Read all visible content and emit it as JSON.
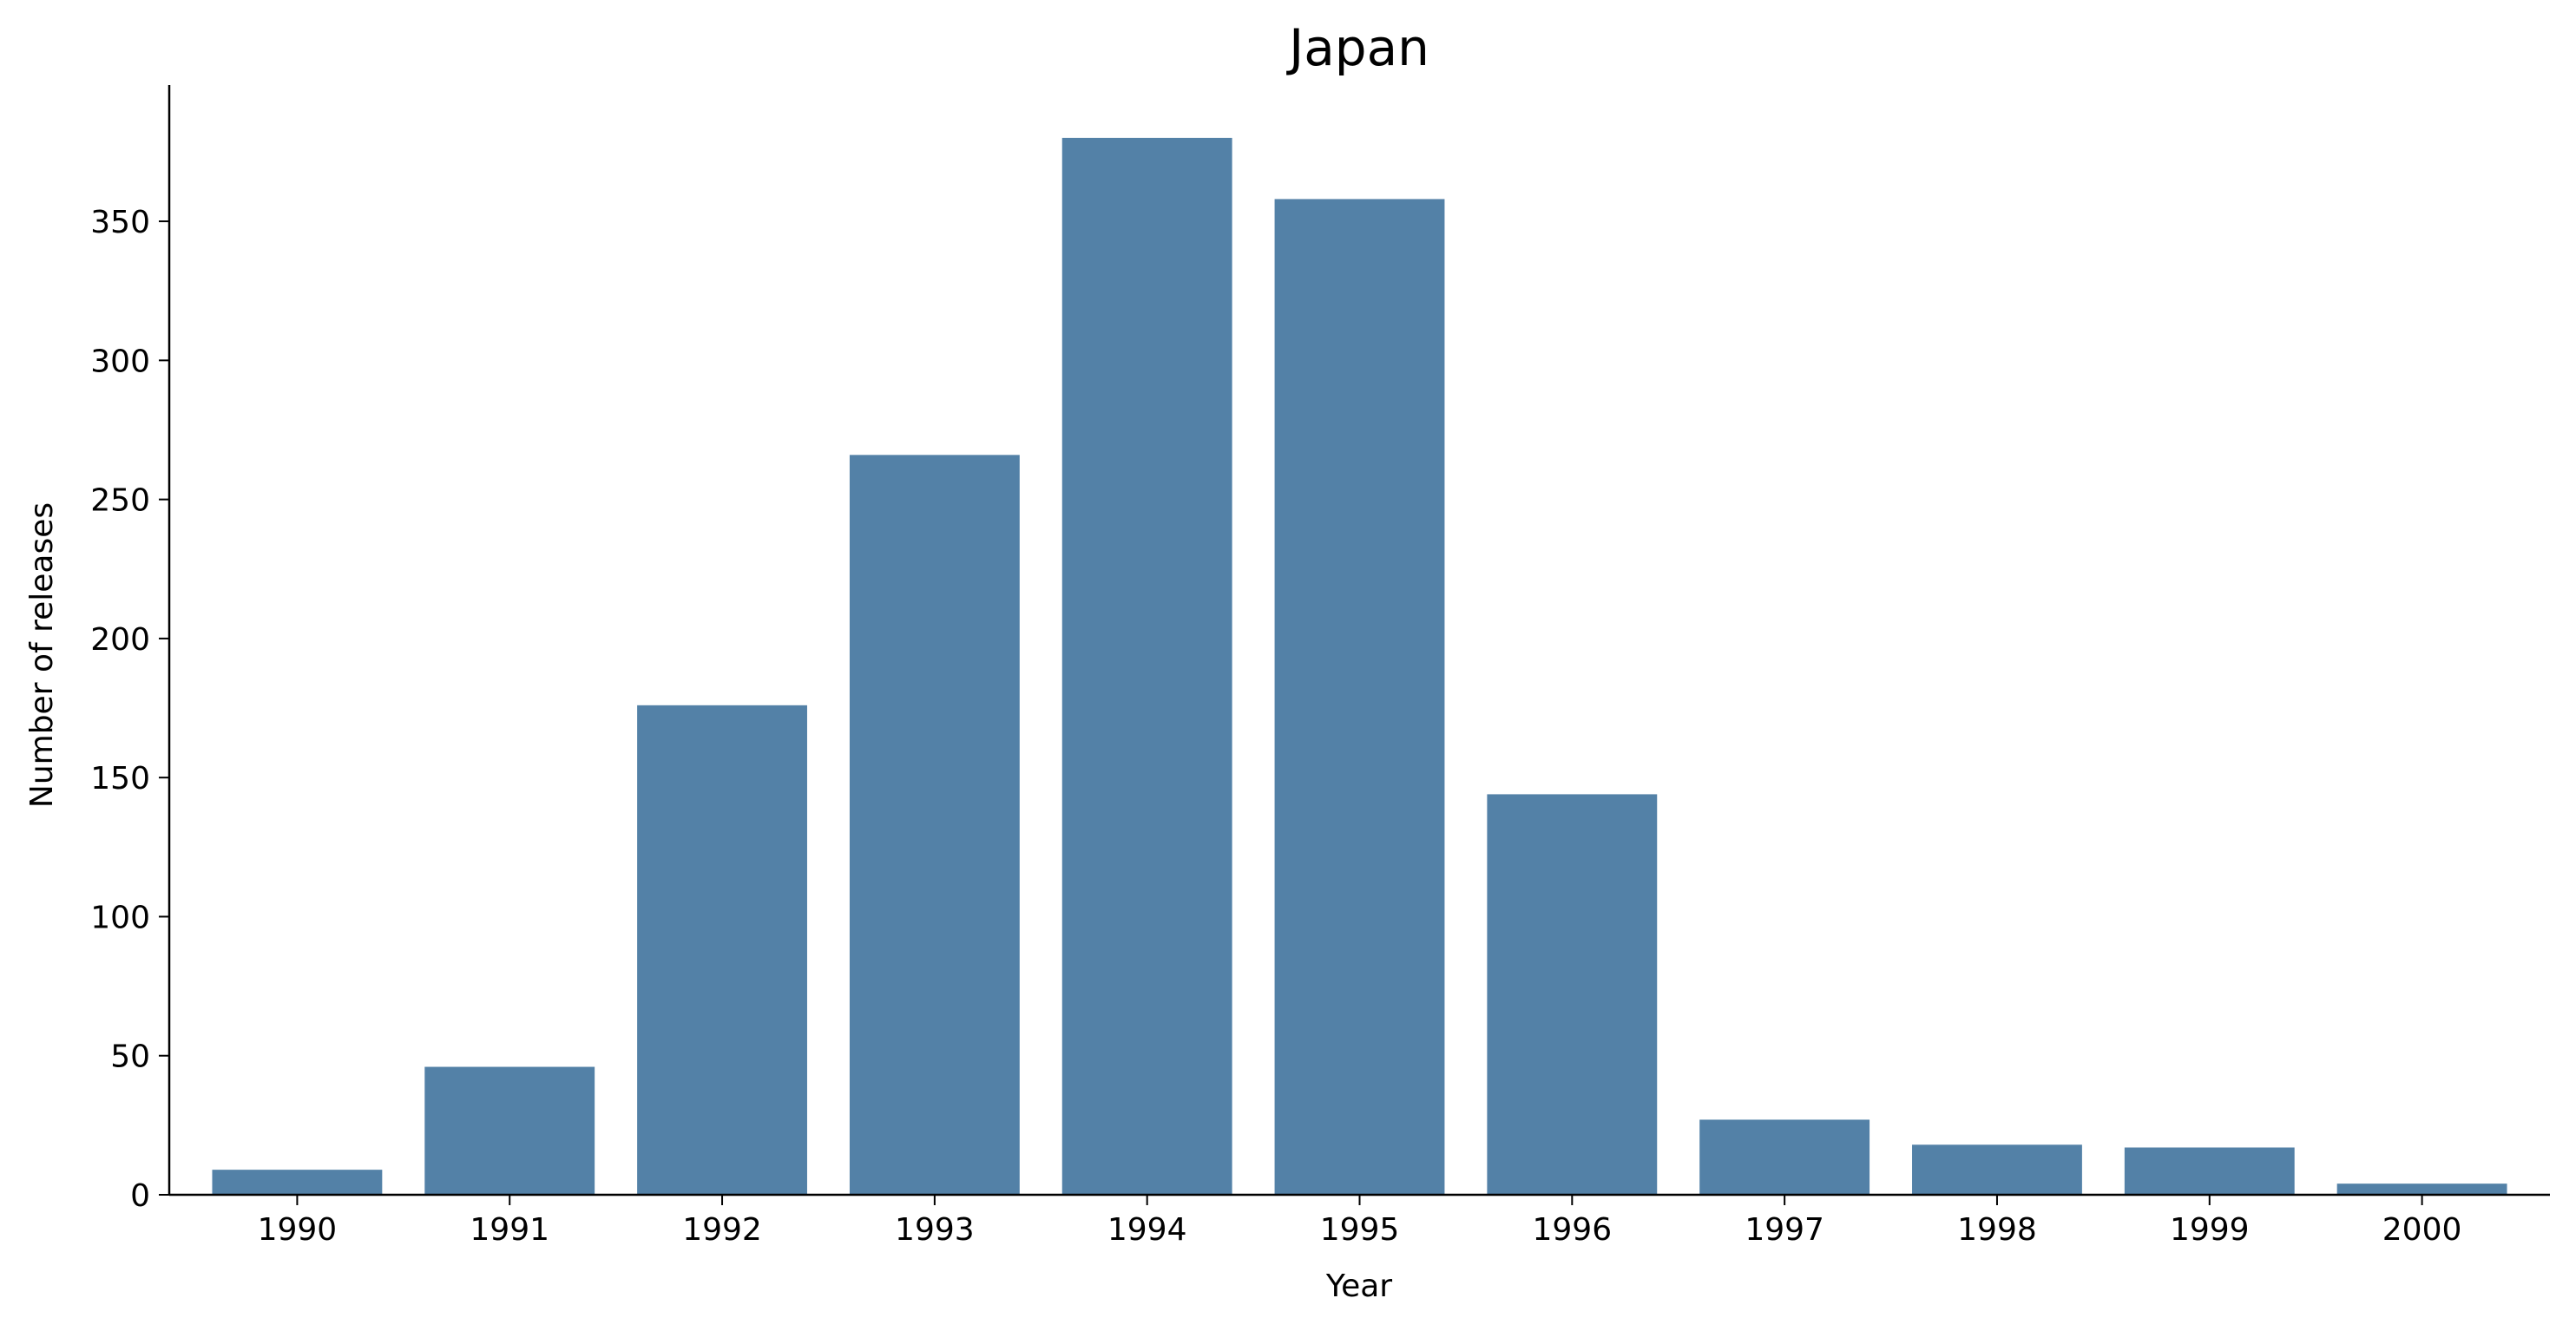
{
  "chart_data": {
    "type": "bar",
    "title": "Japan",
    "xlabel": "Year",
    "ylabel": "Number of releases",
    "categories": [
      "1990",
      "1991",
      "1992",
      "1993",
      "1994",
      "1995",
      "1996",
      "1997",
      "1998",
      "1999",
      "2000"
    ],
    "values": [
      9,
      46,
      176,
      266,
      380,
      358,
      144,
      27,
      18,
      17,
      4
    ],
    "ylim": [
      0,
      399
    ],
    "yticks": [
      0,
      50,
      100,
      150,
      200,
      250,
      300,
      350
    ],
    "grid": false,
    "legend": "none",
    "bar_color": "#5381a7",
    "axis_color": "#000000"
  }
}
